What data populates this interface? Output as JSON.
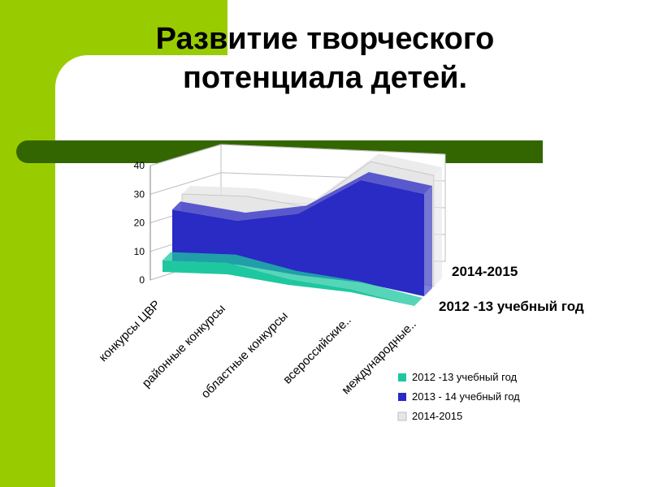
{
  "slide": {
    "title_line1": "Развитие творческого",
    "title_line2": "потенциала детей."
  },
  "colors": {
    "accent_green": "#99cc00",
    "bar_green": "#336600",
    "series_2012": "#1ec7a0",
    "series_2013": "#2a2ac4",
    "series_2014": "#e6e6e6"
  },
  "chart_data": {
    "type": "area",
    "view": "3d",
    "categories": [
      "конкурсы ЦВР",
      "районные конкурсы",
      "областные конкурсы",
      "всероссийские..",
      "международные.."
    ],
    "series": [
      {
        "name": "2012 -13 учебный год",
        "values": [
          4,
          4,
          2,
          1,
          0
        ]
      },
      {
        "name": "2013 - 14 учебный год",
        "values": [
          18,
          15,
          21,
          35,
          35
        ]
      },
      {
        "name": "2014-2015",
        "values": [
          20,
          20,
          20,
          38,
          38
        ]
      }
    ],
    "y_ticks": [
      "0",
      "10",
      "20",
      "30",
      "40"
    ],
    "depth_labels": [
      "2014-2015",
      "2012 -13 учебный год"
    ],
    "ylim": [
      0,
      40
    ],
    "legend_position": "bottom-right",
    "grid": true
  }
}
